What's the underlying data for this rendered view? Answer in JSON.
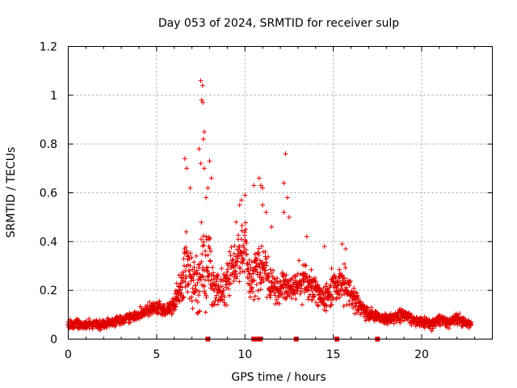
{
  "chart_data": {
    "type": "scatter",
    "title": "Day 053 of 2024, SRMTID for receiver sulp",
    "xlabel": "GPS time / hours",
    "ylabel": "SRMTID / TECUs",
    "xlim": [
      0,
      24
    ],
    "ylim": [
      0,
      1.2
    ],
    "x_ticks": [
      0,
      5,
      10,
      15,
      20
    ],
    "x_tick_labels": [
      "0",
      "5",
      "10",
      "15",
      "20"
    ],
    "y_ticks": [
      0,
      0.2,
      0.4,
      0.6,
      0.8,
      1.0,
      1.2
    ],
    "y_tick_labels": [
      "0",
      "0.2",
      "0.4",
      "0.6",
      "0.8",
      "1",
      "1.2"
    ],
    "grid": true,
    "marker": "+",
    "color": "#e00000",
    "series": [
      {
        "name": "SRMTID",
        "envelope": {
          "x": [
            0,
            0.5,
            1,
            1.5,
            2,
            2.5,
            3,
            3.5,
            4,
            4.5,
            5,
            5.5,
            6,
            6.3,
            6.6,
            7,
            7.3,
            7.6,
            8,
            8.3,
            8.6,
            9,
            9.3,
            9.6,
            10,
            10.3,
            10.6,
            11,
            11.3,
            11.6,
            12,
            12.3,
            12.6,
            13,
            13.3,
            13.6,
            14,
            14.3,
            14.6,
            15,
            15.3,
            15.6,
            16,
            16.5,
            17,
            17.5,
            18,
            18.5,
            19,
            19.5,
            20,
            20.5,
            21,
            21.5,
            22,
            22.5,
            22.8
          ],
          "median": [
            0.06,
            0.06,
            0.06,
            0.06,
            0.06,
            0.07,
            0.08,
            0.09,
            0.1,
            0.12,
            0.13,
            0.12,
            0.14,
            0.2,
            0.3,
            0.27,
            0.24,
            0.3,
            0.28,
            0.22,
            0.2,
            0.24,
            0.3,
            0.35,
            0.38,
            0.25,
            0.28,
            0.32,
            0.24,
            0.22,
            0.2,
            0.22,
            0.2,
            0.22,
            0.24,
            0.22,
            0.2,
            0.18,
            0.16,
            0.22,
            0.22,
            0.22,
            0.18,
            0.14,
            0.1,
            0.09,
            0.08,
            0.09,
            0.1,
            0.08,
            0.07,
            0.06,
            0.08,
            0.07,
            0.08,
            0.07,
            0.06
          ],
          "spread": [
            0.03,
            0.03,
            0.03,
            0.03,
            0.03,
            0.03,
            0.03,
            0.03,
            0.03,
            0.04,
            0.04,
            0.04,
            0.06,
            0.12,
            0.2,
            0.18,
            0.2,
            0.25,
            0.2,
            0.12,
            0.1,
            0.12,
            0.14,
            0.14,
            0.14,
            0.12,
            0.18,
            0.16,
            0.12,
            0.1,
            0.1,
            0.1,
            0.08,
            0.1,
            0.12,
            0.1,
            0.1,
            0.08,
            0.08,
            0.12,
            0.1,
            0.1,
            0.08,
            0.05,
            0.04,
            0.03,
            0.03,
            0.04,
            0.04,
            0.03,
            0.03,
            0.03,
            0.03,
            0.03,
            0.03,
            0.03,
            0.02
          ]
        },
        "outliers": [
          [
            7.5,
            1.06
          ],
          [
            7.6,
            1.04
          ],
          [
            7.55,
            0.98
          ],
          [
            7.62,
            0.97
          ],
          [
            7.7,
            0.85
          ],
          [
            7.65,
            0.82
          ],
          [
            6.6,
            0.74
          ],
          [
            6.7,
            0.7
          ],
          [
            7.5,
            0.72
          ],
          [
            7.7,
            0.7
          ],
          [
            7.4,
            0.78
          ],
          [
            8.0,
            0.73
          ],
          [
            8.1,
            0.66
          ],
          [
            7.9,
            0.62
          ],
          [
            12.3,
            0.76
          ],
          [
            12.2,
            0.64
          ],
          [
            12.4,
            0.58
          ],
          [
            10.8,
            0.66
          ],
          [
            10.9,
            0.63
          ],
          [
            11.0,
            0.62
          ],
          [
            10.5,
            0.63
          ],
          [
            10.0,
            0.59
          ],
          [
            9.8,
            0.57
          ],
          [
            9.7,
            0.55
          ],
          [
            11.2,
            0.52
          ],
          [
            11.0,
            0.55
          ],
          [
            12.5,
            0.5
          ],
          [
            12.2,
            0.52
          ],
          [
            15.5,
            0.39
          ],
          [
            15.7,
            0.37
          ],
          [
            14.5,
            0.38
          ],
          [
            13.5,
            0.42
          ],
          [
            9.5,
            0.48
          ],
          [
            6.9,
            0.62
          ],
          [
            7.8,
            0.58
          ],
          [
            11.5,
            0.46
          ]
        ]
      }
    ],
    "gap_markers_x": [
      7.9,
      10.5,
      10.6,
      10.75,
      10.85,
      12.9,
      15.2,
      17.5
    ]
  }
}
